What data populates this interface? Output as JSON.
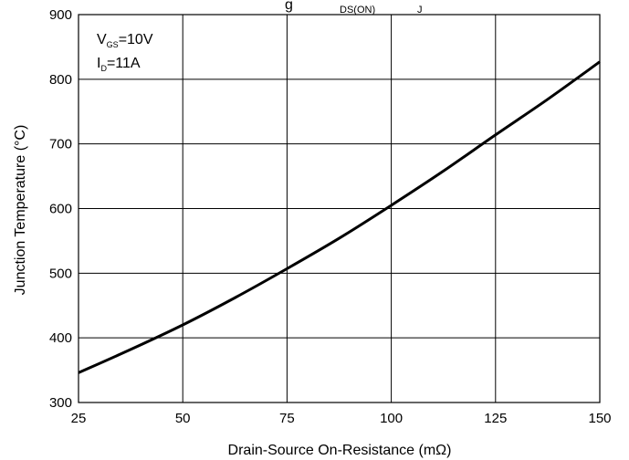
{
  "chart_data": {
    "type": "line",
    "title_visible_fragments": [
      "g",
      "DS(ON)",
      "J"
    ],
    "xlabel": "Drain-Source On-Resistance (mΩ)",
    "ylabel": "Junction Temperature (°C)",
    "xlim": [
      25,
      150
    ],
    "ylim": [
      300,
      900
    ],
    "xticks": [
      "25",
      "50",
      "75",
      "100",
      "125",
      "150"
    ],
    "yticks": [
      "300",
      "400",
      "500",
      "600",
      "700",
      "800",
      "900"
    ],
    "grid": true,
    "annotations": {
      "vgs_main": "V",
      "vgs_sub": "GS",
      "vgs_value": "=10V",
      "id_main": "I",
      "id_sub": "D",
      "id_value": "=11A"
    },
    "series": [
      {
        "color": "#000000",
        "x": [
          25,
          37.5,
          50,
          62.5,
          75,
          87.5,
          100,
          112.5,
          125,
          137.5,
          150
        ],
        "y": [
          346,
          382,
          420,
          462,
          507,
          554,
          605,
          658,
          714,
          769,
          827
        ]
      }
    ]
  }
}
